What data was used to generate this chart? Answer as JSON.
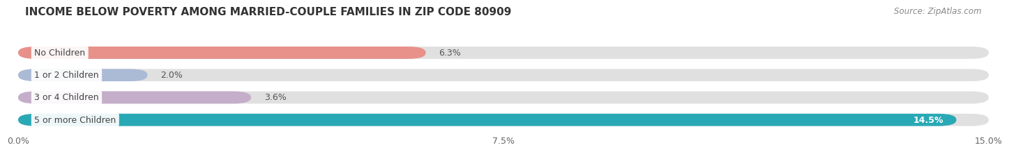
{
  "title": "INCOME BELOW POVERTY AMONG MARRIED-COUPLE FAMILIES IN ZIP CODE 80909",
  "source": "Source: ZipAtlas.com",
  "categories": [
    "No Children",
    "1 or 2 Children",
    "3 or 4 Children",
    "5 or more Children"
  ],
  "values": [
    6.3,
    2.0,
    3.6,
    14.5
  ],
  "bar_colors": [
    "#E8908A",
    "#ABBAD5",
    "#C4AECA",
    "#29A9B5"
  ],
  "value_labels": [
    "6.3%",
    "2.0%",
    "3.6%",
    "14.5%"
  ],
  "xlim": [
    0,
    15.0
  ],
  "xticks": [
    0.0,
    7.5,
    15.0
  ],
  "xticklabels": [
    "0.0%",
    "7.5%",
    "15.0%"
  ],
  "background_color": "#f0f0f0",
  "bar_background": "#e0e0e0",
  "title_fontsize": 11,
  "source_fontsize": 8.5,
  "tick_fontsize": 9,
  "label_fontsize": 9,
  "value_fontsize": 9,
  "bar_height": 0.55
}
